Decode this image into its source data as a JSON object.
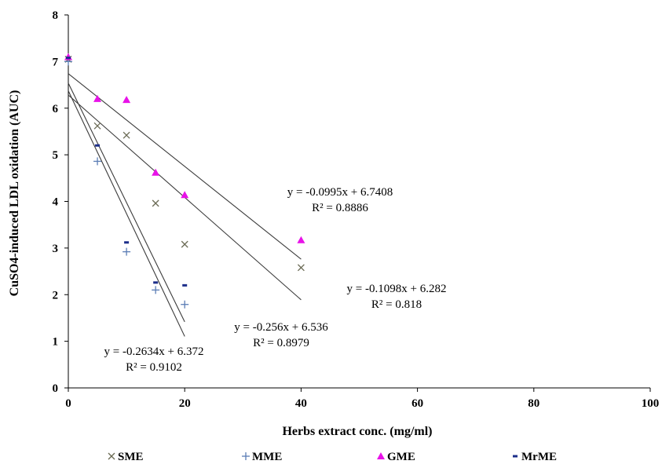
{
  "chart_data": {
    "type": "scatter",
    "xlabel": "Herbs extract conc.  (mg/ml)",
    "ylabel": "CuSO4-induced LDL oxidation (AUC)",
    "xlim": [
      0,
      100
    ],
    "ylim": [
      0,
      8
    ],
    "x_ticks": [
      "0",
      "20",
      "40",
      "60",
      "80",
      "100"
    ],
    "y_ticks": [
      "0",
      "1",
      "2",
      "3",
      "4",
      "5",
      "6",
      "7",
      "8"
    ],
    "grid": false,
    "legend_position": "bottom",
    "series": [
      {
        "name": "SME",
        "marker": "x",
        "color": "#6b6b55",
        "points": [
          [
            0,
            7.05
          ],
          [
            5,
            5.62
          ],
          [
            10,
            5.42
          ],
          [
            15,
            3.96
          ],
          [
            20,
            3.08
          ],
          [
            40,
            2.58
          ]
        ]
      },
      {
        "name": "MME",
        "marker": "plus",
        "color": "#5b7db5",
        "points": [
          [
            0,
            7.0
          ],
          [
            5,
            4.86
          ],
          [
            10,
            2.92
          ],
          [
            15,
            2.1
          ],
          [
            20,
            1.79
          ]
        ]
      },
      {
        "name": "GME",
        "marker": "triangle",
        "color": "#e812e8",
        "points": [
          [
            0,
            7.1
          ],
          [
            5,
            6.2
          ],
          [
            10,
            6.18
          ],
          [
            15,
            4.62
          ],
          [
            20,
            4.14
          ],
          [
            40,
            3.17
          ]
        ]
      },
      {
        "name": "MrME",
        "marker": "dash",
        "color": "#1c2e8a",
        "points": [
          [
            0,
            7.08
          ],
          [
            5,
            5.2
          ],
          [
            10,
            3.12
          ],
          [
            15,
            2.26
          ],
          [
            20,
            2.2
          ]
        ]
      }
    ],
    "trendlines": [
      {
        "slope": -0.0995,
        "intercept": 6.7408,
        "x_range": [
          0,
          40
        ],
        "equation": "y = -0.0995x + 6.7408",
        "r2": "R² = 0.8886"
      },
      {
        "slope": -0.1098,
        "intercept": 6.282,
        "x_range": [
          0,
          40
        ],
        "equation": "y = -0.1098x + 6.282",
        "r2": "R² = 0.818"
      },
      {
        "slope": -0.256,
        "intercept": 6.536,
        "x_range": [
          0,
          20
        ],
        "equation": "y = -0.256x + 6.536",
        "r2": "R² = 0.8979"
      },
      {
        "slope": -0.2634,
        "intercept": 6.372,
        "x_range": [
          0,
          20
        ],
        "equation": "y = -0.2634x + 6.372",
        "r2": "R² = 0.9102"
      }
    ]
  }
}
